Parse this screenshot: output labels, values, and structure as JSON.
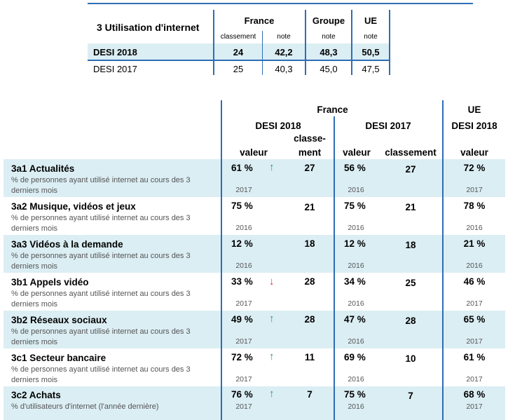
{
  "summary": {
    "title": "3 Utilisation d'internet",
    "col_france": "France",
    "col_groupe": "Groupe",
    "col_ue": "UE",
    "sub_classement": "classement",
    "sub_note": "note",
    "rows": [
      {
        "label": "DESI 2018",
        "rank": "24",
        "france_note": "42,2",
        "groupe_note": "48,3",
        "ue_note": "50,5"
      },
      {
        "label": "DESI 2017",
        "rank": "25",
        "france_note": "40,3",
        "groupe_note": "45,0",
        "ue_note": "47,5"
      }
    ]
  },
  "main": {
    "h_france": "France",
    "h_ue": "UE",
    "h_desi2018": "DESI 2018",
    "h_desi2017": "DESI 2017",
    "h_ue_desi2018": "DESI 2018",
    "h_valeur": "valeur",
    "h_classement_1": "classe-",
    "h_classement_2": "ment",
    "h_valeur2017": "valeur",
    "h_classement2017": "classement",
    "h_ue_valeur": "valeur",
    "indicators": [
      {
        "title": "3a1 Actualités",
        "desc1": "% de personnes ayant utilisé internet au cours des 3",
        "desc2": "derniers mois",
        "v18": "61 %",
        "trend": "up",
        "r18": "27",
        "y18": "2017",
        "v17": "56 %",
        "r17": "27",
        "y17": "2016",
        "ue": "72 %",
        "yue": "2017"
      },
      {
        "title": "3a2 Musique, vidéos et jeux",
        "desc1": "% de personnes ayant utilisé internet au cours des 3",
        "desc2": "derniers mois",
        "v18": "75 %",
        "trend": "",
        "r18": "21",
        "y18": "2016",
        "v17": "75 %",
        "r17": "21",
        "y17": "2016",
        "ue": "78 %",
        "yue": "2016"
      },
      {
        "title": "3a3 Vidéos à la demande",
        "desc1": "% de personnes ayant utilisé internet au cours des 3",
        "desc2": "derniers mois",
        "v18": "12 %",
        "trend": "",
        "r18": "18",
        "y18": "2016",
        "v17": "12 %",
        "r17": "18",
        "y17": "2016",
        "ue": "21 %",
        "yue": "2016"
      },
      {
        "title": "3b1 Appels vidéo",
        "desc1": "% de personnes ayant utilisé internet au cours des 3",
        "desc2": "derniers mois",
        "v18": "33 %",
        "trend": "down",
        "r18": "28",
        "y18": "2017",
        "v17": "34 %",
        "r17": "25",
        "y17": "2016",
        "ue": "46 %",
        "yue": "2017"
      },
      {
        "title": "3b2 Réseaux sociaux",
        "desc1": "% de personnes ayant utilisé internet au cours des 3",
        "desc2": "derniers mois",
        "v18": "49 %",
        "trend": "up",
        "r18": "28",
        "y18": "2017",
        "v17": "47 %",
        "r17": "28",
        "y17": "2016",
        "ue": "65 %",
        "yue": "2017"
      },
      {
        "title": "3c1 Secteur bancaire",
        "desc1": "% de personnes ayant utilisé internet au cours des 3",
        "desc2": "derniers mois",
        "v18": "72 %",
        "trend": "up",
        "r18": "11",
        "y18": "2017",
        "v17": "69 %",
        "r17": "10",
        "y17": "2016",
        "ue": "61 %",
        "yue": "2017"
      },
      {
        "title": "3c2 Achats",
        "desc1": "% d'utilisateurs d'internet (l'année dernière)",
        "desc2": "",
        "v18": "76 %",
        "trend": "up",
        "r18": "7",
        "y18": "2017",
        "v17": "75 %",
        "r17": "7",
        "y17": "2016",
        "ue": "68 %",
        "yue": "2017"
      }
    ]
  },
  "colors": {
    "accent": "#2f6db5",
    "row_bg": "#dbeef4",
    "up": "#21a35a",
    "down": "#e03030"
  }
}
